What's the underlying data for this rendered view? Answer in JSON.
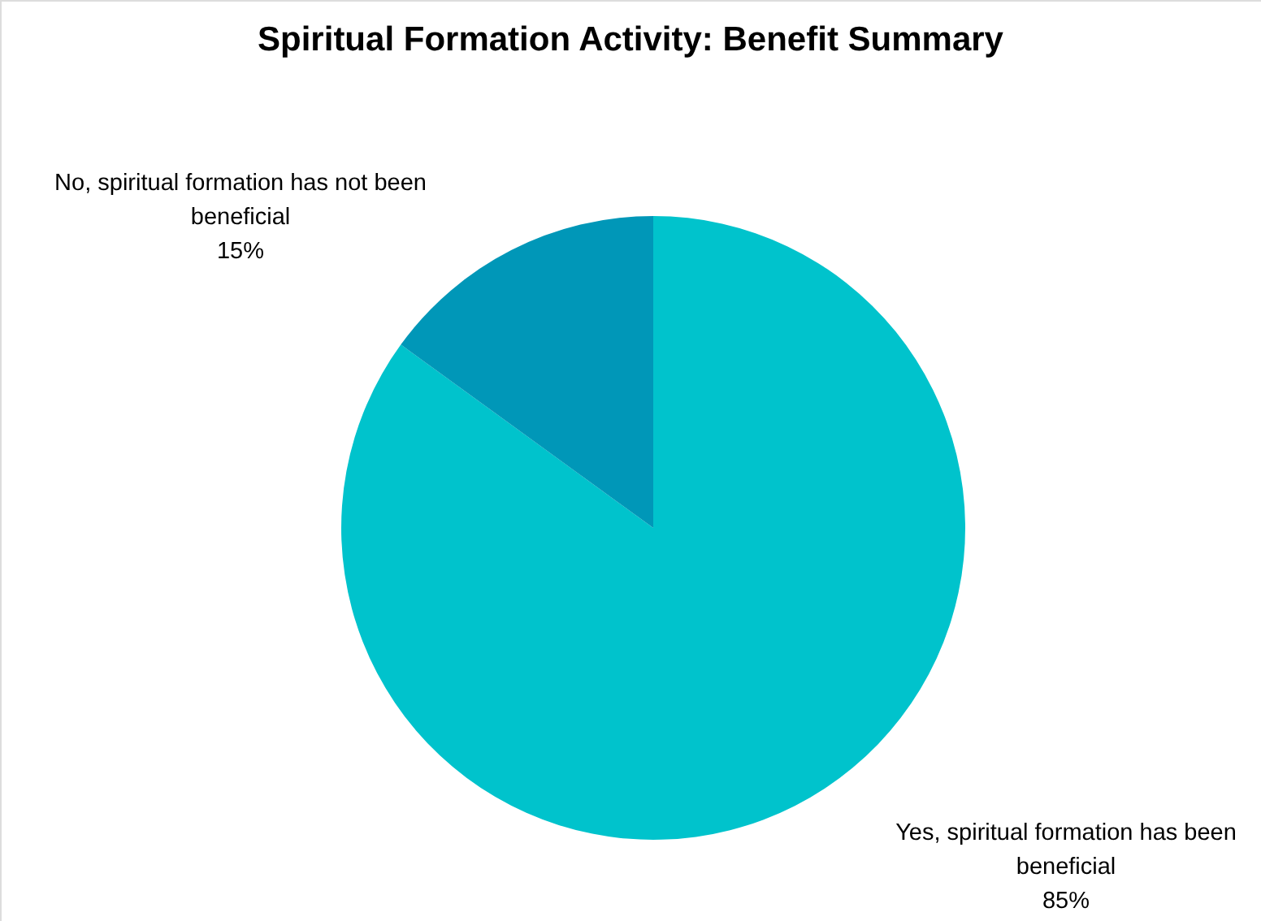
{
  "chart_data": {
    "type": "pie",
    "title": "Spiritual Formation Activity: Benefit Summary",
    "categories": [
      "Yes, spiritual formation has been beneficial",
      "No, spiritual formation has not been beneficial"
    ],
    "values": [
      85,
      15
    ],
    "colors": [
      "#00c3cc",
      "#0097b8"
    ],
    "value_labels": [
      "85%",
      "15%"
    ]
  }
}
